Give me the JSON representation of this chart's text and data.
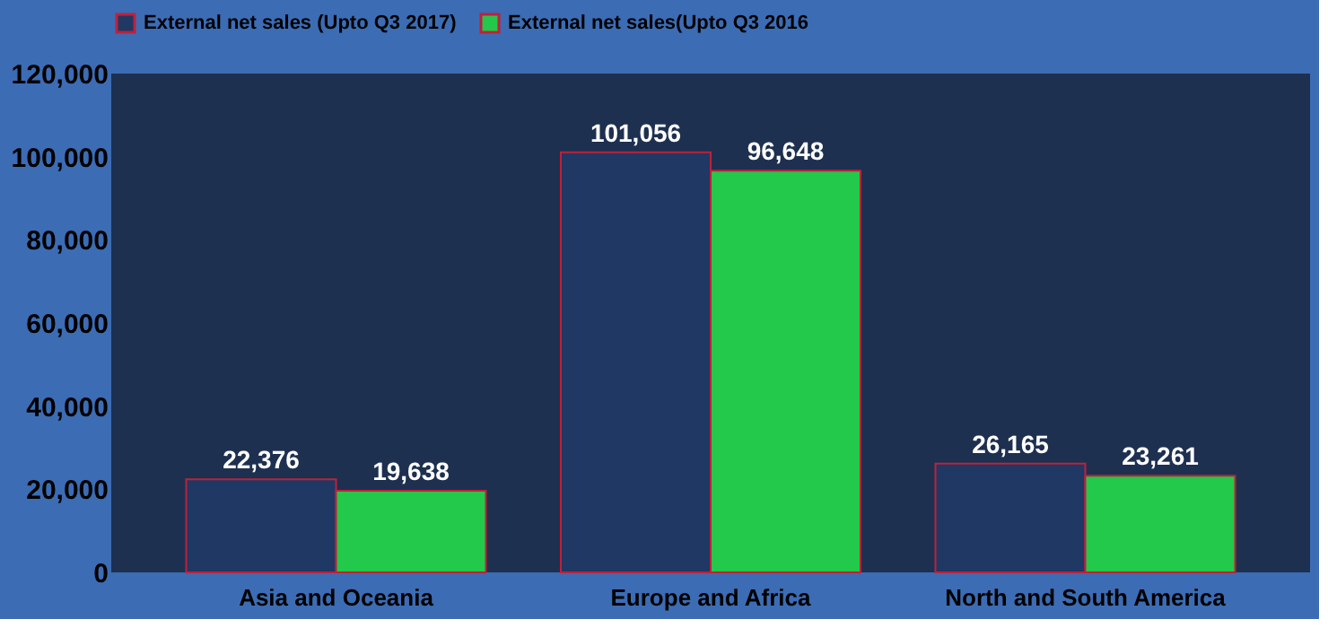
{
  "chart_data": {
    "type": "bar",
    "categories": [
      "Asia and Oceania",
      "Europe and Africa",
      "North and South America"
    ],
    "series": [
      {
        "name": "External net sales (Upto Q3 2017)",
        "color": "#1f3864",
        "values": [
          22376,
          101056,
          26165
        ],
        "value_labels": [
          "22,376",
          "101,056",
          "26,165"
        ]
      },
      {
        "name": "External net sales(Upto Q3 2016",
        "color": "#22c94a",
        "values": [
          19638,
          96648,
          23261
        ],
        "value_labels": [
          "19,638",
          "96,648",
          "23,261"
        ]
      }
    ],
    "ylim": [
      0,
      120000
    ],
    "yticks": [
      0,
      {
        "value": 20000,
        "label": "20,000"
      },
      {
        "value": 40000,
        "label": "40,000"
      },
      {
        "value": 60000,
        "label": "60,000"
      },
      {
        "value": 80000,
        "label": "80,000"
      },
      {
        "value": 100000,
        "label": "100,000"
      },
      {
        "value": 120000,
        "label": "120,000"
      }
    ],
    "grid": false,
    "legend": "top"
  }
}
